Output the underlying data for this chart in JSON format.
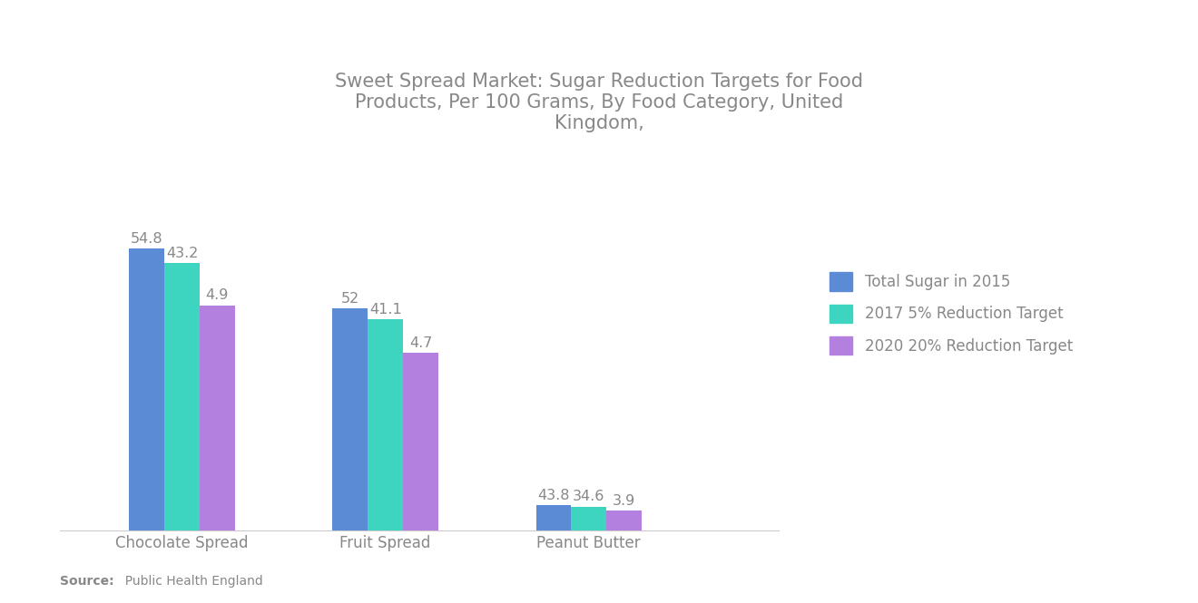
{
  "title": "Sweet Spread Market: Sugar Reduction Targets for Food\nProducts, Per 100 Grams, By Food Category, United\nKingdom,",
  "categories": [
    "Chocolate Spread",
    "Fruit Spread",
    "Peanut Butter"
  ],
  "series": [
    {
      "label": "Total Sugar in 2015",
      "color": "#5B8BD4",
      "values": [
        54.8,
        43.2,
        4.9
      ]
    },
    {
      "label": "2017 5% Reduction Target",
      "color": "#3DD4C0",
      "values": [
        52,
        41.1,
        4.7
      ]
    },
    {
      "label": "2020 20% Reduction Target",
      "color": "#B380E0",
      "values": [
        43.8,
        34.6,
        3.9
      ]
    }
  ],
  "value_labels": [
    [
      "54.8",
      "52",
      "43.8"
    ],
    [
      "43.2",
      "41.1",
      "34.6"
    ],
    [
      "4.9",
      "4.7",
      "3.9"
    ]
  ],
  "source_bold": "Source:",
  "source_rest": "  Public Health England",
  "background_color": "#FFFFFF",
  "title_color": "#888888",
  "label_color": "#888888",
  "bar_width": 0.13,
  "ylim": [
    0,
    68
  ],
  "value_fontsize": 11.5,
  "xlabel_fontsize": 12,
  "legend_fontsize": 12,
  "title_fontsize": 15,
  "source_fontsize": 10,
  "group_centers": [
    0.35,
    1.1,
    1.85
  ],
  "xlim": [
    -0.1,
    2.55
  ]
}
